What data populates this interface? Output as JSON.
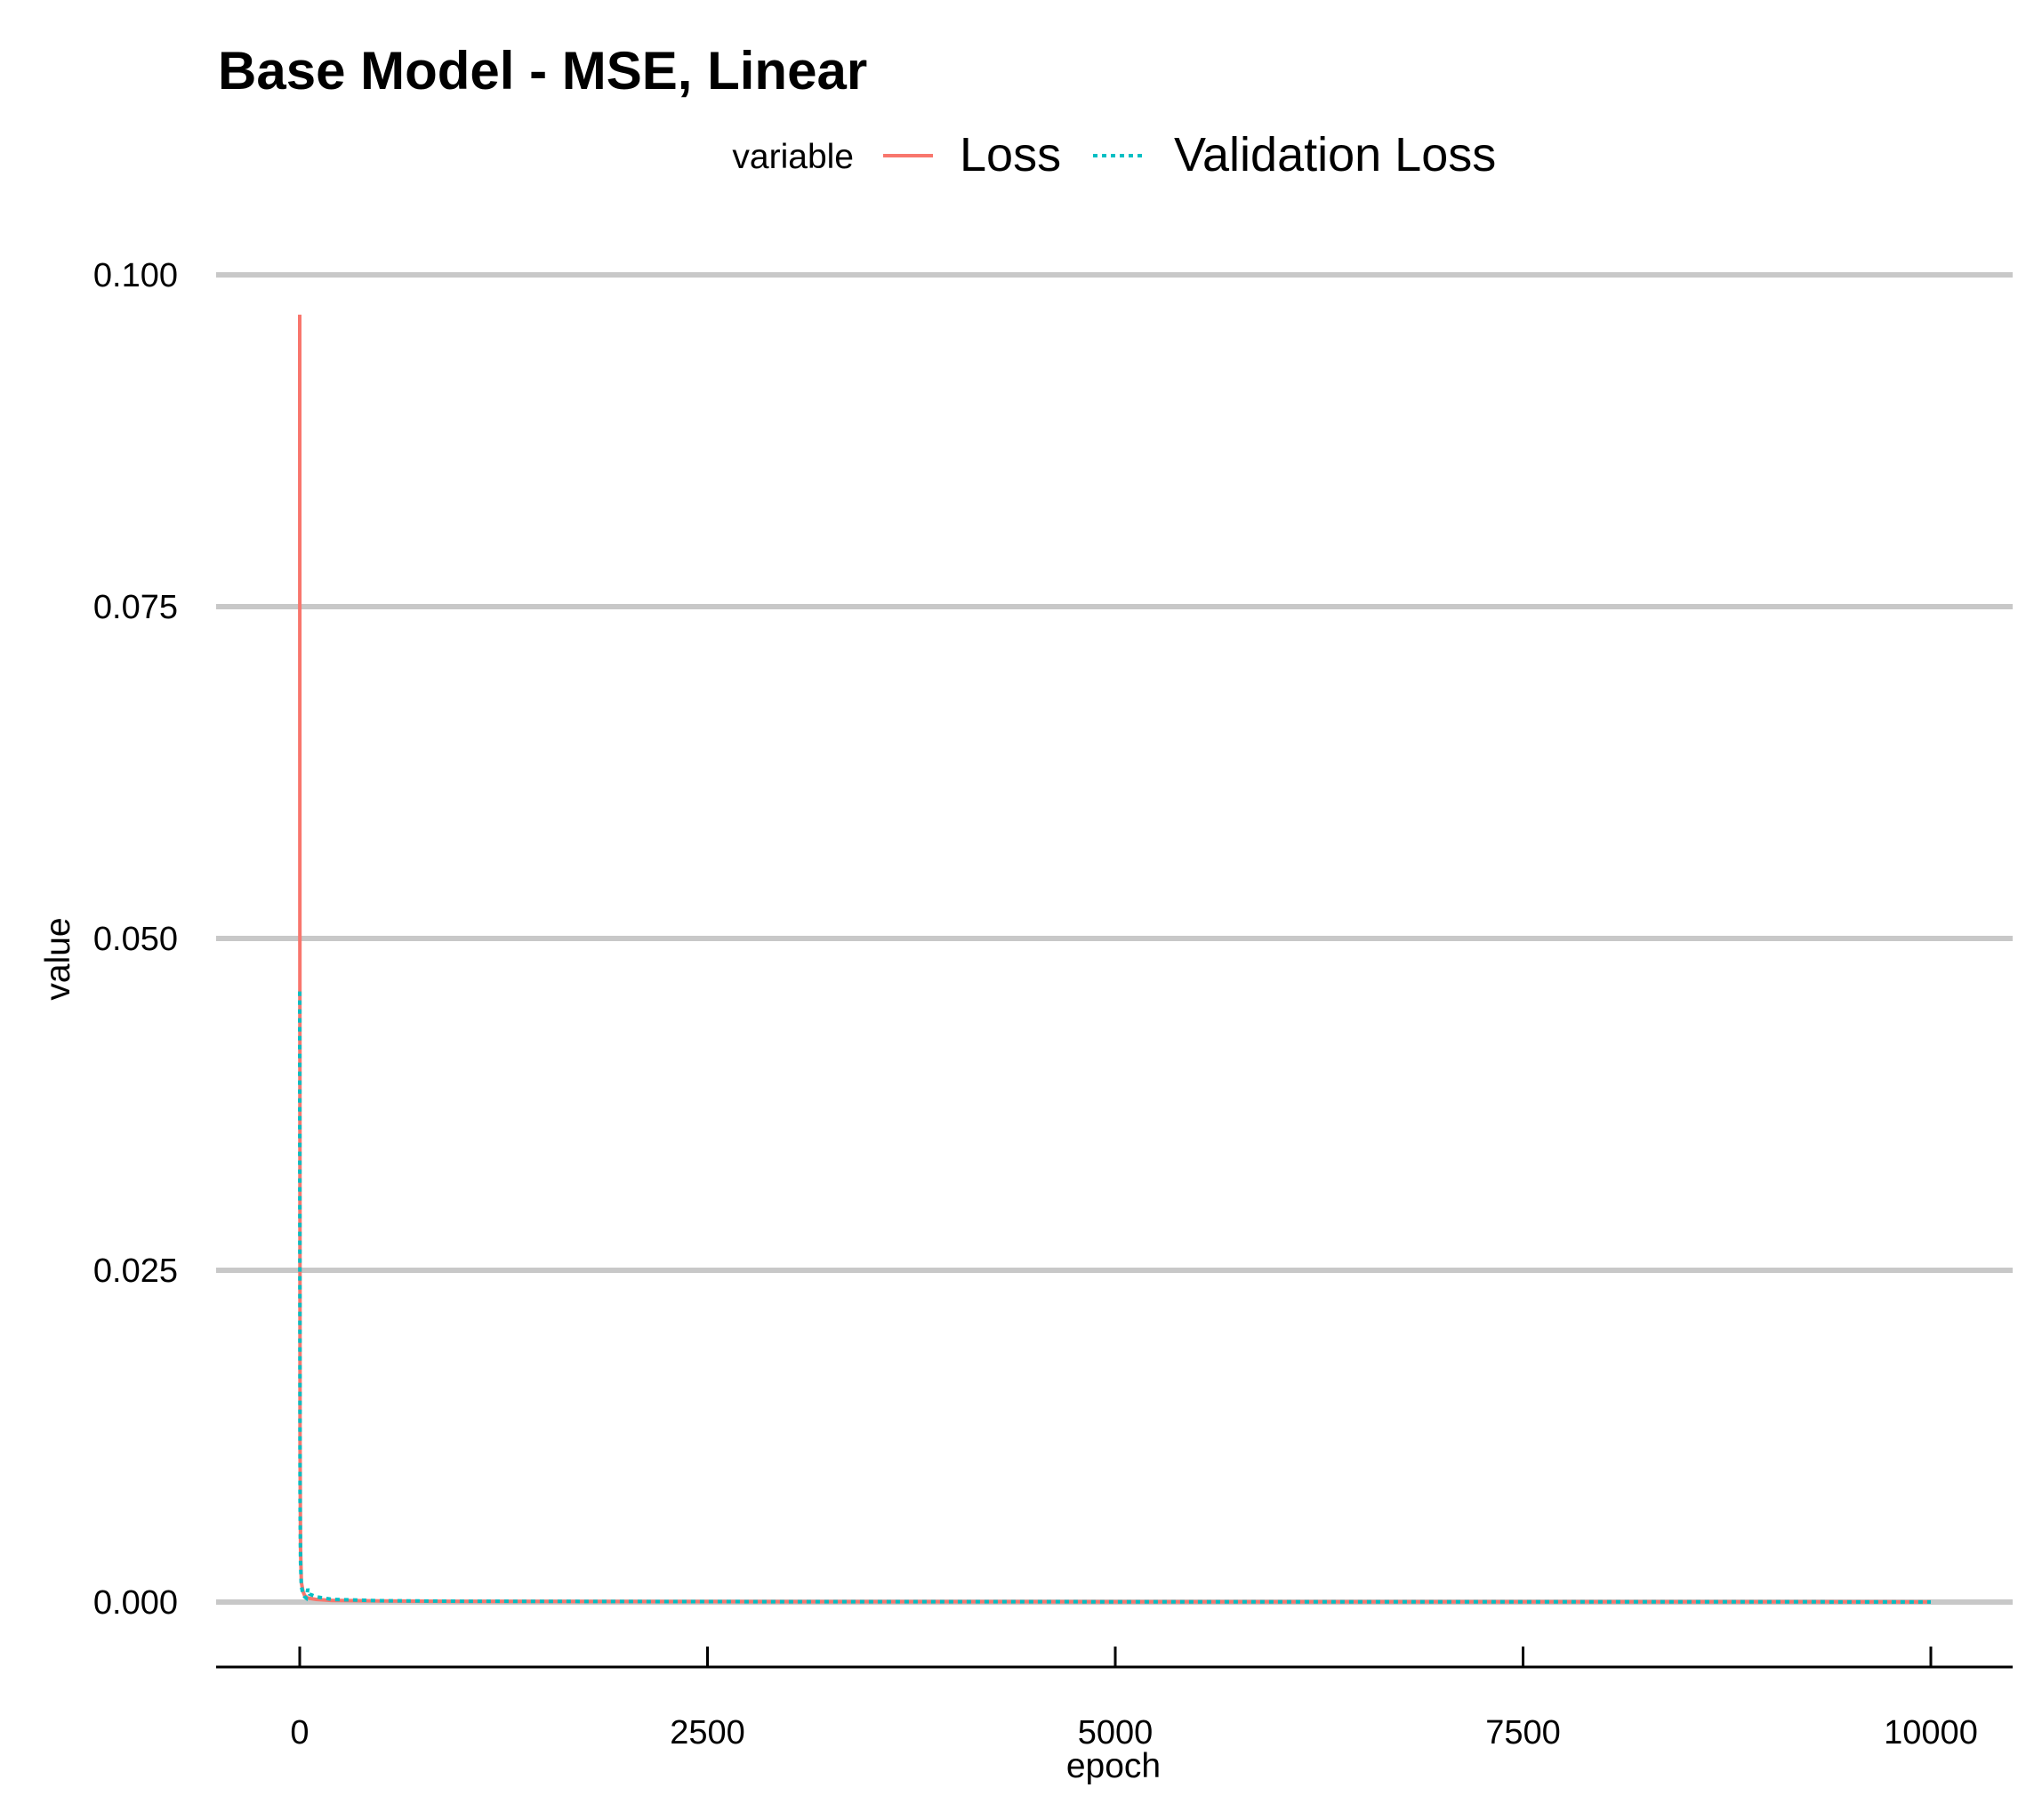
{
  "chart_data": {
    "type": "line",
    "title": "Base Model - MSE, Linear",
    "xlabel": "epoch",
    "ylabel": "value",
    "legend": {
      "title": "variable",
      "position": "top"
    },
    "xlim": [
      -200,
      10200
    ],
    "ylim": [
      -0.005,
      0.1
    ],
    "x_ticks": [
      0,
      2500,
      5000,
      7500,
      10000
    ],
    "x_tick_labels": [
      "0",
      "2500",
      "5000",
      "7500",
      "10000"
    ],
    "y_ticks": [
      0,
      0.025,
      0.05,
      0.075,
      0.1
    ],
    "y_tick_labels": [
      "0.000",
      "0.025",
      "0.050",
      "0.075",
      "0.100"
    ],
    "grid": {
      "major_y": true,
      "major_x": false
    },
    "series": [
      {
        "name": "Loss",
        "color": "#F8766D",
        "dash": "solid",
        "x": [
          0,
          1,
          2,
          5,
          10,
          20,
          30,
          50,
          100,
          200,
          500,
          1000,
          2500,
          5000,
          7500,
          10000
        ],
        "y": [
          0.097,
          0.05,
          0.012,
          0.004,
          0.0015,
          0.0008,
          0.0005,
          0.0003,
          0.0002,
          0.00012,
          8e-05,
          5e-05,
          3e-05,
          2e-05,
          2e-05,
          1e-05
        ]
      },
      {
        "name": "Validation Loss",
        "color": "#00BFC4",
        "dash": "dotted",
        "x": [
          0,
          1,
          2,
          5,
          10,
          20,
          30,
          40,
          50,
          60,
          80,
          100,
          150,
          200,
          500,
          1000,
          2500,
          5000,
          7500,
          10000
        ],
        "y": [
          0.046,
          0.025,
          0.008,
          0.003,
          0.0012,
          0.0006,
          0.0004,
          0.0003,
          0.001,
          0.0006,
          0.0005,
          0.0004,
          0.0003,
          0.0002,
          0.0001,
          6e-05,
          3e-05,
          2e-05,
          2e-05,
          1e-05
        ]
      }
    ]
  }
}
